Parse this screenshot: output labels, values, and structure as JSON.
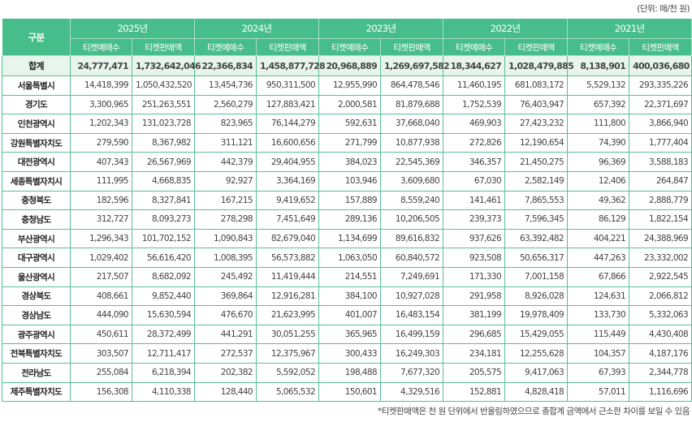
{
  "unit_note": "(단위: 매/천 원)",
  "header": {
    "corner": "구분",
    "years": [
      "2025년",
      "2024년",
      "2023년",
      "2022년",
      "2021년"
    ],
    "sub": [
      "티켓예매수",
      "티켓판매액"
    ]
  },
  "colors": {
    "header_bg": "#48bd8c",
    "total_bg": "#e7f5ec",
    "border": "#5bbf95"
  },
  "total": {
    "name": "합계",
    "values": [
      "24,777,471",
      "1,732,642,046",
      "22,366,834",
      "1,458,877,728",
      "20,968,889",
      "1,269,697,582",
      "18,344,627",
      "1,028,479,885",
      "8,138,901",
      "400,036,680"
    ]
  },
  "rows": [
    {
      "name": "서울특별시",
      "values": [
        "14,418,399",
        "1,050,432,520",
        "13,454,736",
        "950,311,500",
        "12,955,990",
        "864,478,546",
        "11,460,195",
        "681,083,172",
        "5,529,132",
        "293,335,226"
      ]
    },
    {
      "name": "경기도",
      "values": [
        "3,300,965",
        "251,263,551",
        "2,560,279",
        "127,883,421",
        "2,000,581",
        "81,879,688",
        "1,752,539",
        "76,403,947",
        "657,392",
        "22,371,697"
      ]
    },
    {
      "name": "인천광역시",
      "values": [
        "1,202,343",
        "131,023,728",
        "823,965",
        "76,144,279",
        "592,631",
        "37,668,040",
        "469,903",
        "27,423,232",
        "111,800",
        "3,866,940"
      ]
    },
    {
      "name": "강원특별자치도",
      "values": [
        "279,590",
        "8,367,982",
        "311,121",
        "16,600,656",
        "271,799",
        "10,877,938",
        "272,826",
        "12,190,654",
        "74,390",
        "1,777,404"
      ]
    },
    {
      "name": "대전광역시",
      "values": [
        "407,343",
        "26,567,969",
        "442,379",
        "29,404,955",
        "384,023",
        "22,545,369",
        "346,357",
        "21,450,275",
        "96,369",
        "3,588,183"
      ]
    },
    {
      "name": "세종특별자치시",
      "values": [
        "111,995",
        "4,668,835",
        "92,927",
        "3,364,169",
        "103,946",
        "3,609,680",
        "67,030",
        "2,582,149",
        "12,406",
        "264,847"
      ]
    },
    {
      "name": "충청북도",
      "values": [
        "182,596",
        "8,327,841",
        "167,215",
        "9,419,652",
        "157,889",
        "8,559,240",
        "141,461",
        "7,865,553",
        "49,362",
        "2,888,779"
      ]
    },
    {
      "name": "충청남도",
      "values": [
        "312,727",
        "8,093,273",
        "278,298",
        "7,451,649",
        "289,136",
        "10,206,505",
        "239,373",
        "7,596,345",
        "86,129",
        "1,822,154"
      ]
    },
    {
      "name": "부산광역시",
      "values": [
        "1,296,343",
        "101,702,152",
        "1,090,843",
        "82,679,040",
        "1,134,699",
        "89,616,832",
        "937,626",
        "63,392,482",
        "404,221",
        "24,388,969"
      ]
    },
    {
      "name": "대구광역시",
      "values": [
        "1,029,402",
        "56,616,420",
        "1,008,395",
        "56,573,882",
        "1,063,050",
        "60,840,572",
        "923,508",
        "50,656,317",
        "447,263",
        "23,332,002"
      ]
    },
    {
      "name": "울산광역시",
      "values": [
        "217,507",
        "8,682,092",
        "245,492",
        "11,419,444",
        "214,551",
        "7,249,691",
        "171,330",
        "7,001,158",
        "67,866",
        "2,922,545"
      ]
    },
    {
      "name": "경상북도",
      "values": [
        "408,661",
        "9,852,440",
        "369,864",
        "12,916,281",
        "384,100",
        "10,927,028",
        "291,958",
        "8,926,028",
        "124,631",
        "2,066,812"
      ]
    },
    {
      "name": "경상남도",
      "values": [
        "444,090",
        "15,630,594",
        "476,670",
        "21,623,995",
        "401,007",
        "16,483,154",
        "381,199",
        "19,978,409",
        "133,730",
        "5,332,063"
      ]
    },
    {
      "name": "광주광역시",
      "values": [
        "450,611",
        "28,372,499",
        "441,291",
        "30,051,255",
        "365,965",
        "16,499,159",
        "296,685",
        "15,429,055",
        "115,449",
        "4,430,408"
      ]
    },
    {
      "name": "전북특별자치도",
      "values": [
        "303,507",
        "12,711,417",
        "272,537",
        "12,375,967",
        "300,433",
        "16,249,303",
        "234,181",
        "12,255,628",
        "104,357",
        "4,187,176"
      ]
    },
    {
      "name": "전라남도",
      "values": [
        "255,084",
        "6,218,394",
        "202,382",
        "5,592,052",
        "198,488",
        "7,677,320",
        "205,575",
        "9,417,063",
        "67,393",
        "2,344,778"
      ]
    },
    {
      "name": "제주특별자치도",
      "values": [
        "156,308",
        "4,110,338",
        "128,440",
        "5,065,532",
        "150,601",
        "4,329,516",
        "152,881",
        "4,828,418",
        "57,011",
        "1,116,696"
      ]
    }
  ],
  "footnote": "*티켓판매액은 천 원 단위에서 반올림하였으므로 총합계 금액에서 근소한 차이를 보일 수 있음"
}
